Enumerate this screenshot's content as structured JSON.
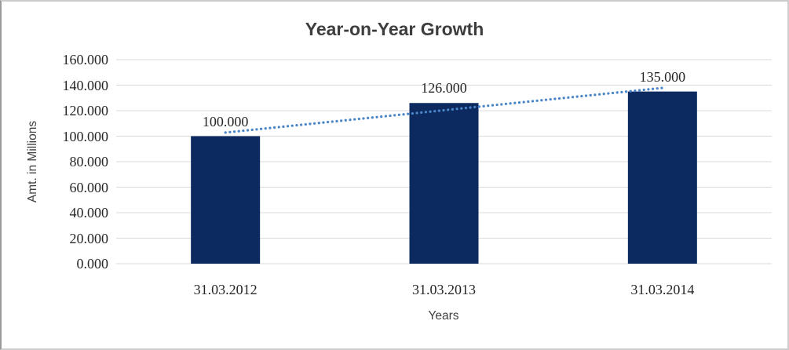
{
  "chart_data": {
    "type": "bar",
    "title": "Year-on-Year Growth",
    "xlabel": "Years",
    "ylabel": "Amt. in Millions",
    "categories": [
      "31.03.2012",
      "31.03.2013",
      "31.03.2014"
    ],
    "values": [
      100,
      126,
      135
    ],
    "data_labels": [
      "100.000",
      "126.000",
      "135.000"
    ],
    "yticks": [
      {
        "value": 0,
        "label": "0.000"
      },
      {
        "value": 20,
        "label": "20.000"
      },
      {
        "value": 40,
        "label": "40.000"
      },
      {
        "value": 60,
        "label": "60.000"
      },
      {
        "value": 80,
        "label": "80.000"
      },
      {
        "value": 100,
        "label": "100.000"
      },
      {
        "value": 120,
        "label": "120.000"
      },
      {
        "value": 140,
        "label": "140.000"
      },
      {
        "value": 160,
        "label": "160.000"
      }
    ],
    "ylim": [
      0,
      160
    ],
    "grid": true,
    "legend": "none",
    "trendline": {
      "type": "linear",
      "style": "dotted",
      "color": "#4a86c8"
    },
    "colors": {
      "bar": "#0c2a60",
      "gridline": "#d9d9d9",
      "tick_text": "#262626",
      "title_text": "#3d3d3d",
      "axis_title_text": "#404040"
    }
  }
}
